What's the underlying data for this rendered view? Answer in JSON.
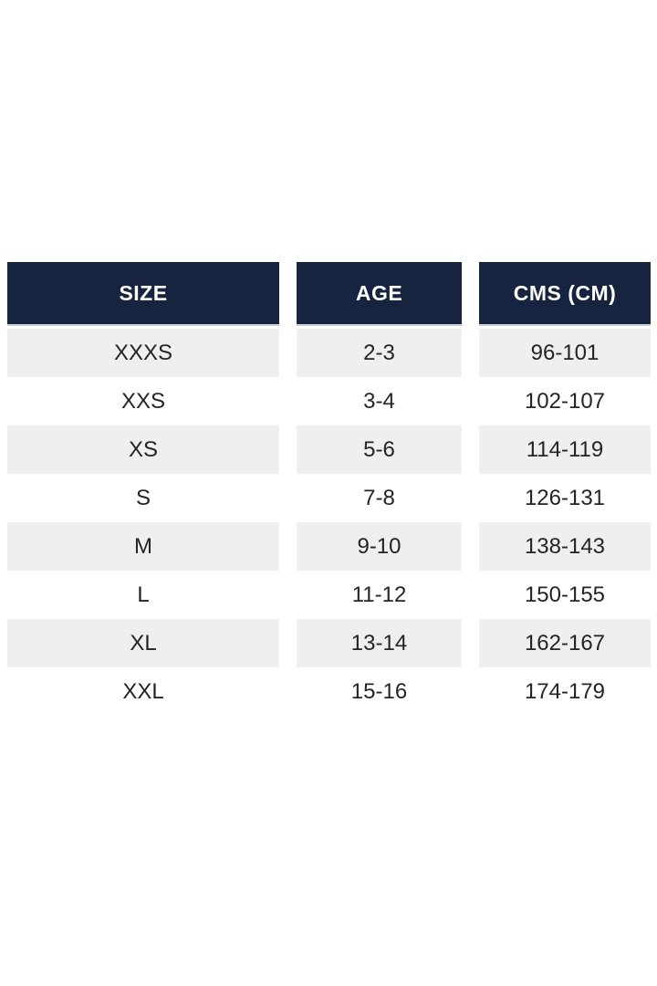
{
  "table": {
    "columns": [
      {
        "id": "size",
        "label": "SIZE"
      },
      {
        "id": "age",
        "label": "AGE"
      },
      {
        "id": "cms",
        "label": "CMS (CM)"
      }
    ],
    "rows": [
      {
        "size": "XXXS",
        "age": "2-3",
        "cms": "96-101"
      },
      {
        "size": "XXS",
        "age": "3-4",
        "cms": "102-107"
      },
      {
        "size": "XS",
        "age": "5-6",
        "cms": "114-119"
      },
      {
        "size": "S",
        "age": "7-8",
        "cms": "126-131"
      },
      {
        "size": "M",
        "age": "9-10",
        "cms": "138-143"
      },
      {
        "size": "L",
        "age": "11-12",
        "cms": "150-155"
      },
      {
        "size": "XL",
        "age": "13-14",
        "cms": "162-167"
      },
      {
        "size": "XXL",
        "age": "15-16",
        "cms": "174-179"
      }
    ]
  },
  "colors": {
    "header_bg": "#16243f",
    "header_text": "#ffffff",
    "row_alt_bg": "#efefef",
    "row_bg": "#ffffff",
    "cell_text": "#242424"
  }
}
